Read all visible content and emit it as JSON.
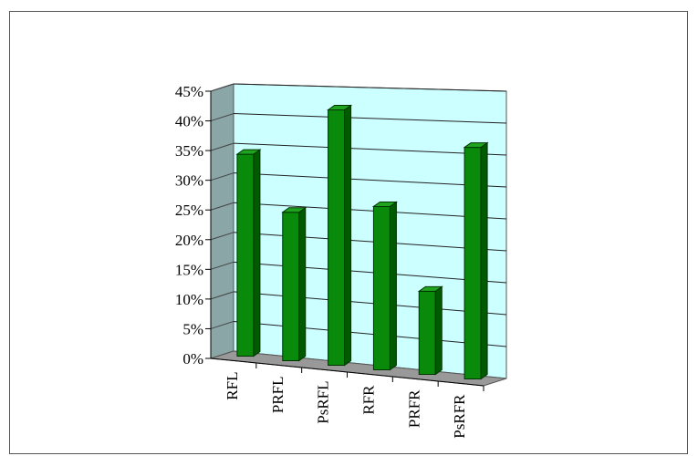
{
  "chart_data": {
    "type": "bar",
    "title": "",
    "xlabel": "",
    "ylabel": "",
    "categories": [
      "RFL",
      "PRFL",
      "PsRFL",
      "RFR",
      "PRFR",
      "PsRFR"
    ],
    "values": [
      34,
      25,
      43,
      27.5,
      14,
      39
    ],
    "ylim": [
      0,
      45
    ],
    "yticks": [
      "0%",
      "5%",
      "10%",
      "15%",
      "20%",
      "25%",
      "30%",
      "35%",
      "40%",
      "45%"
    ],
    "grid": true,
    "legend": "none",
    "style": "3d-column"
  },
  "colors": {
    "bar_front": "#0a8a0a",
    "bar_side": "#005a00",
    "bar_top": "#1ea41e",
    "back_wall": "#ccffff",
    "side_wall": "#8aa6a6",
    "floor": "#999999"
  }
}
